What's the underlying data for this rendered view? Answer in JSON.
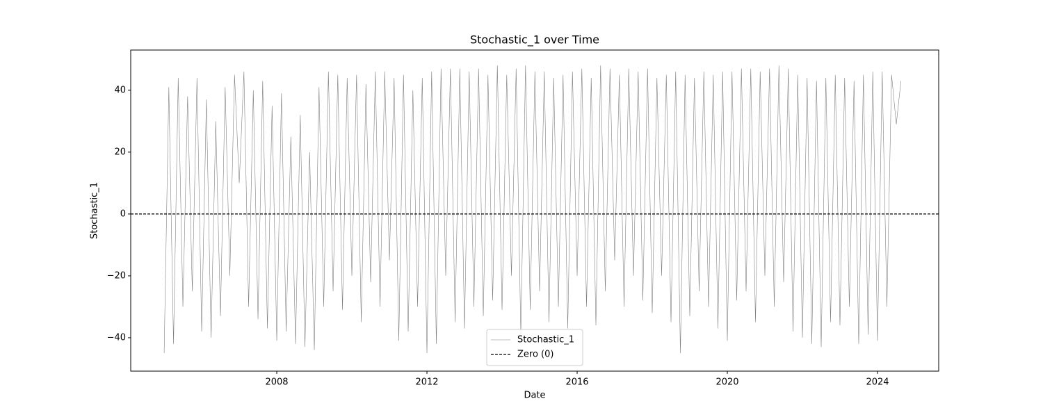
{
  "chart_data": {
    "type": "line",
    "title": "Stochastic_1 over Time",
    "x_label": "Date",
    "y_label": "Stochastic_1",
    "x": [
      2005,
      2005.125,
      2005.25,
      2005.375,
      2005.5,
      2005.625,
      2005.75,
      2005.875,
      2006,
      2006.125,
      2006.25,
      2006.375,
      2006.5,
      2006.625,
      2006.75,
      2006.875,
      2007,
      2007.125,
      2007.25,
      2007.375,
      2007.5,
      2007.625,
      2007.75,
      2007.875,
      2008,
      2008.125,
      2008.25,
      2008.375,
      2008.5,
      2008.625,
      2008.75,
      2008.875,
      2009,
      2009.125,
      2009.25,
      2009.375,
      2009.5,
      2009.625,
      2009.75,
      2009.875,
      2010,
      2010.125,
      2010.25,
      2010.375,
      2010.5,
      2010.625,
      2010.75,
      2010.875,
      2011,
      2011.125,
      2011.25,
      2011.375,
      2011.5,
      2011.625,
      2011.75,
      2011.875,
      2012,
      2012.125,
      2012.25,
      2012.375,
      2012.5,
      2012.625,
      2012.75,
      2012.875,
      2013,
      2013.125,
      2013.25,
      2013.375,
      2013.5,
      2013.625,
      2013.75,
      2013.875,
      2014,
      2014.125,
      2014.25,
      2014.375,
      2014.5,
      2014.625,
      2014.75,
      2014.875,
      2015,
      2015.125,
      2015.25,
      2015.375,
      2015.5,
      2015.625,
      2015.75,
      2015.875,
      2016,
      2016.125,
      2016.25,
      2016.375,
      2016.5,
      2016.625,
      2016.75,
      2016.875,
      2017,
      2017.125,
      2017.25,
      2017.375,
      2017.5,
      2017.625,
      2017.75,
      2017.875,
      2018,
      2018.125,
      2018.25,
      2018.375,
      2018.5,
      2018.625,
      2018.75,
      2018.875,
      2019,
      2019.125,
      2019.25,
      2019.375,
      2019.5,
      2019.625,
      2019.75,
      2019.875,
      2020,
      2020.125,
      2020.25,
      2020.375,
      2020.5,
      2020.625,
      2020.75,
      2020.875,
      2021,
      2021.125,
      2021.25,
      2021.375,
      2021.5,
      2021.625,
      2021.75,
      2021.875,
      2022,
      2022.125,
      2022.25,
      2022.375,
      2022.5,
      2022.625,
      2022.75,
      2022.875,
      2023,
      2023.125,
      2023.25,
      2023.375,
      2023.5,
      2023.625,
      2023.75,
      2023.875,
      2024,
      2024.125,
      2024.25,
      2024.375,
      2024.5,
      2024.625
    ],
    "series": [
      {
        "name": "Stochastic_1",
        "color": "#808080",
        "values": [
          -45,
          41,
          -42,
          44,
          -30,
          38,
          -25,
          44,
          -38,
          37,
          -40,
          30,
          -33,
          41,
          -20,
          45,
          10,
          46,
          -30,
          40,
          -34,
          43,
          -37,
          35,
          -41,
          39,
          -38,
          25,
          -42,
          32,
          -43,
          20,
          -44,
          41,
          -30,
          46,
          -25,
          45,
          -31,
          44,
          -20,
          45,
          -35,
          42,
          -22,
          46,
          -30,
          46,
          -15,
          44,
          -41,
          45,
          -38,
          40,
          -30,
          44,
          -45,
          46,
          -42,
          47,
          -20,
          47,
          -35,
          47,
          -37,
          46,
          -30,
          47,
          -33,
          45,
          -28,
          48,
          -31,
          45,
          -20,
          47,
          -39,
          48,
          -31,
          46,
          -25,
          46,
          -35,
          44,
          -30,
          45,
          -37,
          46,
          -20,
          47,
          -30,
          44,
          -36,
          48,
          -25,
          47,
          -15,
          45,
          -30,
          47,
          -20,
          46,
          -28,
          47,
          -32,
          44,
          -20,
          45,
          -35,
          46,
          -45,
          45,
          -33,
          44,
          -25,
          46,
          -30,
          45,
          -37,
          46,
          -41,
          46,
          -28,
          47,
          -25,
          47,
          -35,
          46,
          -20,
          47,
          -30,
          48,
          -22,
          47,
          -38,
          45,
          -40,
          44,
          -42,
          43,
          -43,
          44,
          -35,
          45,
          -36,
          44,
          -30,
          43,
          -42,
          45,
          -39,
          46,
          -41,
          46,
          -30,
          45,
          29,
          43
        ]
      }
    ],
    "hlines": [
      {
        "name": "Zero (0)",
        "y": 0,
        "color": "#000000"
      }
    ],
    "xlim": [
      2004.11,
      2025.63
    ],
    "xticks": [
      2008,
      2012,
      2016,
      2020,
      2024
    ],
    "ylim": [
      -50.8,
      53.0
    ],
    "yticks": [
      {
        "value": -40,
        "label": "−40"
      },
      {
        "value": -20,
        "label": "−20"
      },
      0,
      20,
      40
    ],
    "legend": "lower center"
  }
}
